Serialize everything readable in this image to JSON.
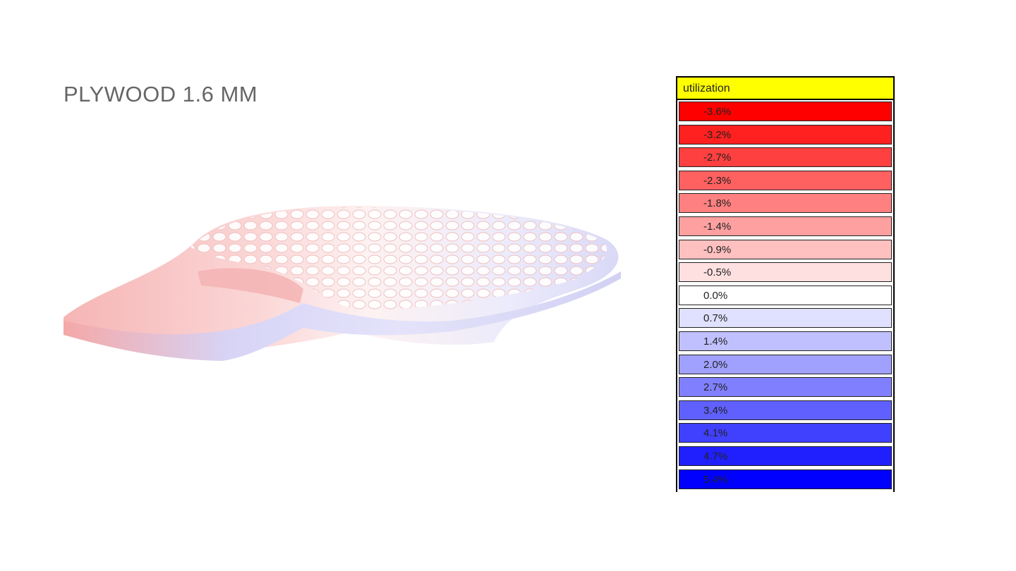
{
  "slide": {
    "title": "PLYWOOD 1.6 MM"
  },
  "legend": {
    "header": "utilization",
    "header_color": "#ffff00",
    "entries": [
      {
        "label": "-3.6%",
        "color": "#ff0000"
      },
      {
        "label": "-3.2%",
        "color": "#ff2020"
      },
      {
        "label": "-2.7%",
        "color": "#ff4040"
      },
      {
        "label": "-2.3%",
        "color": "#ff6060"
      },
      {
        "label": "-1.8%",
        "color": "#ff8080"
      },
      {
        "label": "-1.4%",
        "color": "#ffa0a0"
      },
      {
        "label": "-0.9%",
        "color": "#ffc0c0"
      },
      {
        "label": "-0.5%",
        "color": "#ffe0e0"
      },
      {
        "label": "0.0%",
        "color": "#ffffff"
      },
      {
        "label": "0.7%",
        "color": "#e0e0ff"
      },
      {
        "label": "1.4%",
        "color": "#c0c0ff"
      },
      {
        "label": "2.0%",
        "color": "#a0a0ff"
      },
      {
        "label": "2.7%",
        "color": "#8080ff"
      },
      {
        "label": "3.4%",
        "color": "#6060ff"
      },
      {
        "label": "4.1%",
        "color": "#4040ff"
      },
      {
        "label": "4.7%",
        "color": "#2020ff"
      },
      {
        "label": "5.4%",
        "color": "#0000ff"
      }
    ]
  }
}
